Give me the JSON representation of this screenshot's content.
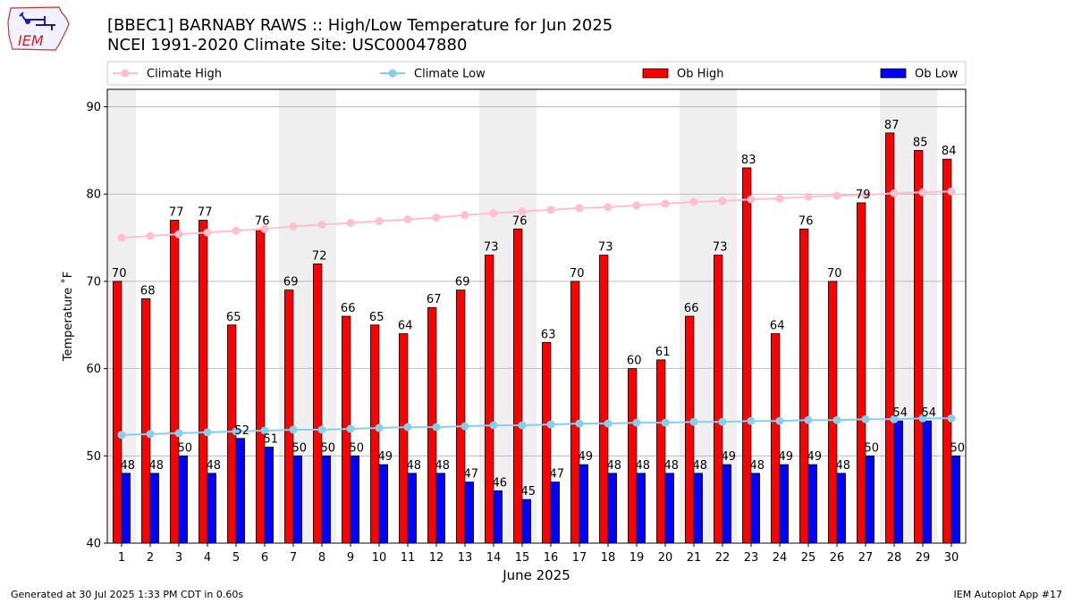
{
  "logo": {
    "text": "IEM",
    "icon": "iowa-map-weather-station-icon",
    "color": "#cc2222"
  },
  "footer": {
    "left": "Generated at 30 Jul 2025 1:33 PM CDT in 0.60s",
    "right": "IEM Autoplot App #17"
  },
  "chart_data": {
    "type": "bar",
    "title": "[BBEC1] BARNABY RAWS :: High/Low Temperature for Jun 2025",
    "subtitle": "NCEI 1991-2020 Climate Site: USC00047880",
    "xlabel": "June 2025",
    "ylabel": "Temperature ˚F",
    "ylim": [
      40,
      92
    ],
    "yticks": [
      40,
      50,
      60,
      70,
      80,
      90
    ],
    "grid": true,
    "legend_position": "top",
    "categories": [
      "1",
      "2",
      "3",
      "4",
      "5",
      "6",
      "7",
      "8",
      "9",
      "10",
      "11",
      "12",
      "13",
      "14",
      "15",
      "16",
      "17",
      "18",
      "19",
      "20",
      "21",
      "22",
      "23",
      "24",
      "25",
      "26",
      "27",
      "28",
      "29",
      "30"
    ],
    "weekend_shading": [
      [
        1,
        1
      ],
      [
        7,
        8
      ],
      [
        14,
        15
      ],
      [
        21,
        22
      ],
      [
        28,
        29
      ]
    ],
    "series": [
      {
        "name": "Ob High",
        "kind": "bar",
        "color": "#ff0000",
        "values": [
          70,
          68,
          77,
          77,
          65,
          76,
          69,
          72,
          66,
          65,
          64,
          67,
          69,
          73,
          76,
          63,
          70,
          73,
          60,
          61,
          66,
          73,
          83,
          64,
          76,
          70,
          79,
          87,
          85,
          84
        ]
      },
      {
        "name": "Ob Low",
        "kind": "bar",
        "color": "#0000ff",
        "values": [
          48,
          48,
          50,
          48,
          52,
          51,
          50,
          50,
          50,
          49,
          48,
          48,
          47,
          46,
          45,
          47,
          49,
          48,
          48,
          48,
          48,
          49,
          48,
          49,
          49,
          48,
          50,
          54,
          54,
          50
        ]
      },
      {
        "name": "Climate High",
        "kind": "line",
        "color": "#ffc0cb",
        "values": [
          75.0,
          75.2,
          75.4,
          75.6,
          75.8,
          76.0,
          76.3,
          76.5,
          76.7,
          76.9,
          77.1,
          77.3,
          77.6,
          77.8,
          78.0,
          78.2,
          78.4,
          78.5,
          78.7,
          78.9,
          79.1,
          79.2,
          79.4,
          79.5,
          79.7,
          79.8,
          79.9,
          80.1,
          80.2,
          80.3
        ]
      },
      {
        "name": "Climate Low",
        "kind": "line",
        "color": "#87ceeb",
        "values": [
          52.4,
          52.5,
          52.6,
          52.7,
          52.8,
          52.9,
          53.0,
          53.0,
          53.1,
          53.2,
          53.3,
          53.3,
          53.4,
          53.5,
          53.5,
          53.6,
          53.7,
          53.7,
          53.8,
          53.8,
          53.9,
          53.9,
          54.0,
          54.0,
          54.1,
          54.1,
          54.2,
          54.2,
          54.3,
          54.3
        ]
      }
    ],
    "legend_order": [
      "Climate High",
      "Climate Low",
      "Ob High",
      "Ob Low"
    ]
  }
}
